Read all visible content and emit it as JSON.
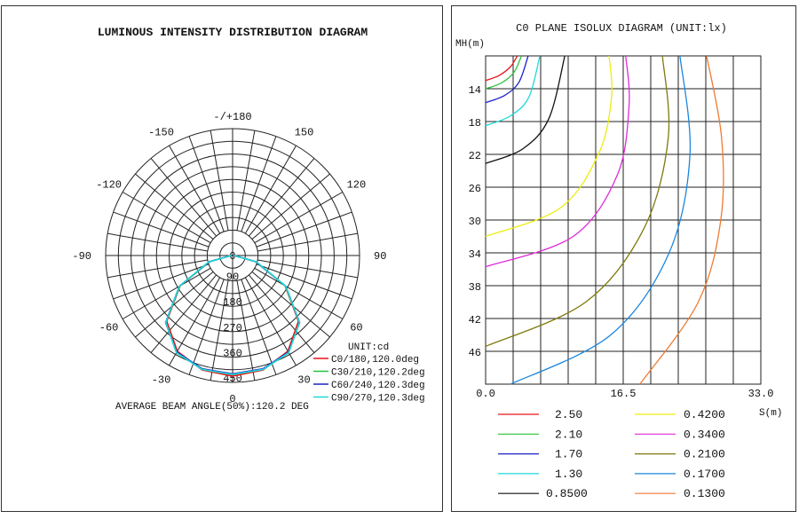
{
  "polar": {
    "title": "LUMINOUS INTENSITY DISTRIBUTION DIAGRAM",
    "angle_labels": [
      "-/+180",
      "-150",
      "150",
      "-120",
      "120",
      "-90",
      "90",
      "-60",
      "60",
      "-30",
      "30",
      "0"
    ],
    "radial_labels": [
      "0",
      "90",
      "180",
      "270",
      "360",
      "450"
    ],
    "unit_label": "UNIT:cd",
    "legend": [
      {
        "label": "C0/180,120.0deg",
        "color": "#e8141a"
      },
      {
        "label": "C30/210,120.2deg",
        "color": "#27c23a"
      },
      {
        "label": "C60/240,120.3deg",
        "color": "#1d22c8"
      },
      {
        "label": "C90/270,120.3deg",
        "color": "#1fd9d9"
      }
    ],
    "beam_angle_text": "AVERAGE BEAM ANGLE(50%):120.2 DEG"
  },
  "isolux": {
    "title": "C0 PLANE ISOLUX DIAGRAM (UNIT:lx)",
    "y_axis_label": "MH(m)",
    "x_axis_label": "S(m)",
    "y_tick_labels": [
      "14",
      "18",
      "22",
      "26",
      "30",
      "34",
      "38",
      "42",
      "46"
    ],
    "x_tick_labels": [
      "0.0",
      "16.5",
      "33.0"
    ],
    "legend": [
      {
        "label": "2.50",
        "color": "#e8141a"
      },
      {
        "label": "2.10",
        "color": "#27c23a"
      },
      {
        "label": "1.70",
        "color": "#1d22c8"
      },
      {
        "label": "1.30",
        "color": "#1fd9d9"
      },
      {
        "label": "0.8500",
        "color": "#111111"
      },
      {
        "label": "0.4200",
        "color": "#ecec12"
      },
      {
        "label": "0.3400",
        "color": "#e02ad8"
      },
      {
        "label": "0.2100",
        "color": "#7f7a0c"
      },
      {
        "label": "0.1700",
        "color": "#1a86e0"
      },
      {
        "label": "0.1300",
        "color": "#ef7a30"
      }
    ]
  },
  "chart_data": [
    {
      "type": "polar",
      "title": "LUMINOUS INTENSITY DISTRIBUTION DIAGRAM",
      "angles_deg": [
        0,
        15,
        30,
        45,
        60,
        75,
        90
      ],
      "rlim": [
        0,
        450
      ],
      "unit": "cd",
      "series": [
        {
          "name": "C0/180,120.0deg",
          "values": [
            428,
            420,
            392,
            330,
            215,
            85,
            5
          ]
        },
        {
          "name": "C30/210,120.2deg",
          "values": [
            422,
            418,
            398,
            335,
            216,
            85,
            5
          ]
        },
        {
          "name": "C60/240,120.3deg",
          "values": [
            420,
            416,
            396,
            336,
            218,
            86,
            5
          ]
        },
        {
          "name": "C90/270,120.3deg",
          "values": [
            422,
            418,
            398,
            335,
            218,
            88,
            5
          ]
        }
      ]
    },
    {
      "type": "line",
      "title": "C0 PLANE ISOLUX DIAGRAM (UNIT:lx)",
      "xlabel": "S(m)",
      "ylabel": "MH(m)",
      "xlim": [
        0,
        33
      ],
      "ylim": [
        10,
        50
      ],
      "grid": true,
      "series": [
        {
          "name": "2.50",
          "x": [
            0,
            1.6,
            3.0,
            3.8
          ],
          "y": [
            13.0,
            12.4,
            11.3,
            10.0
          ]
        },
        {
          "name": "2.10",
          "x": [
            0,
            1.9,
            3.4,
            4.3
          ],
          "y": [
            14.0,
            13.3,
            12.0,
            10.0
          ]
        },
        {
          "name": "1.70",
          "x": [
            0,
            2.3,
            4.0,
            5.1
          ],
          "y": [
            15.7,
            14.8,
            13.2,
            10.0
          ]
        },
        {
          "name": "1.30",
          "x": [
            0,
            3.0,
            5.2,
            6.5
          ],
          "y": [
            18.5,
            17.3,
            15.0,
            10.0
          ]
        },
        {
          "name": "0.8500",
          "x": [
            0,
            4.5,
            7.6,
            9.5
          ],
          "y": [
            23.1,
            21.3,
            17.6,
            10.0
          ]
        },
        {
          "name": "0.4200",
          "x": [
            0,
            9.0,
            13.6,
            15.1,
            14.8
          ],
          "y": [
            32.0,
            28.5,
            21.8,
            15.0,
            10.0
          ]
        },
        {
          "name": "0.3400",
          "x": [
            0,
            10.5,
            15.8,
            17.2,
            16.8
          ],
          "y": [
            35.7,
            32.0,
            24.5,
            16.0,
            10.0
          ]
        },
        {
          "name": "0.2100",
          "x": [
            0,
            12.0,
            19.0,
            21.9,
            21.2
          ],
          "y": [
            45.4,
            40.0,
            31.0,
            20.0,
            10.0
          ]
        },
        {
          "name": "0.1700",
          "x": [
            3.0,
            15.0,
            22.0,
            24.5,
            23.3
          ],
          "y": [
            50.0,
            44.0,
            34.0,
            22.0,
            10.0
          ]
        },
        {
          "name": "0.1300",
          "x": [
            18.5,
            25.5,
            28.2,
            28.3,
            26.5
          ],
          "y": [
            50.0,
            40.0,
            30.0,
            20.0,
            10.0
          ]
        }
      ]
    }
  ]
}
